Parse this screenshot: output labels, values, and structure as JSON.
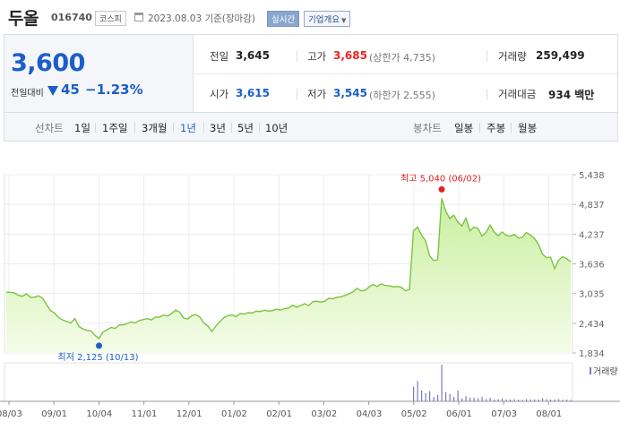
{
  "header": {
    "stock_name": "두올",
    "stock_code": "016740",
    "market": "코스피",
    "date": "2023.08.03 기준(장마감)",
    "realtime_label": "실시간",
    "overview_label": "기업개요"
  },
  "summary": {
    "price": "3,600",
    "prev_label": "전일대비",
    "change": "45",
    "change_pct": "−1.23%",
    "prev_close_label": "전일",
    "prev_close": "3,645",
    "high_label": "고가",
    "high": "3,685",
    "upper_limit": "(상한가 4,735)",
    "volume_label": "거래량",
    "volume": "259,499",
    "open_label": "시가",
    "open": "3,615",
    "low_label": "저가",
    "low": "3,545",
    "lower_limit": "(하한가 2,555)",
    "trade_value_label": "거래대금",
    "trade_value": "934 백만"
  },
  "periods": {
    "line_label": "선차트",
    "line_items": [
      "1일",
      "1주일",
      "3개월",
      "1년",
      "3년",
      "5년",
      "10년"
    ],
    "active": "1년",
    "candle_label": "봉차트",
    "candle_items": [
      "일봉",
      "주봉",
      "월봉"
    ]
  },
  "colors": {
    "up": "#e22222",
    "down": "#1b5ec9",
    "line": "#7dc242",
    "fill_top": "#c9ef9f",
    "fill_bottom": "#f4fce9",
    "volume": "#7a7abf"
  },
  "chart_data": {
    "type": "area",
    "y_ticks": [
      "5,438",
      "4,837",
      "4,237",
      "3,636",
      "3,035",
      "2,434",
      "1,834"
    ],
    "y_range": [
      1834,
      5438
    ],
    "x_ticks": [
      "08/03",
      "09/01",
      "10/04",
      "11/01",
      "12/01",
      "01/02",
      "02/01",
      "03/02",
      "04/03",
      "05/02",
      "06/01",
      "07/03",
      "08/01"
    ],
    "high_label": "최고 5,040 (06/02)",
    "low_label": "최저 2,125 (10/13)",
    "volume_label": "거래량",
    "series": [
      {
        "values": [
          3060,
          3060,
          3050,
          3000,
          2980,
          3030,
          2960,
          2960,
          2990,
          2940,
          2810,
          2690,
          2640,
          2550,
          2500,
          2470,
          2440,
          2530,
          2370,
          2320,
          2290,
          2280,
          2190,
          2125,
          2260,
          2300,
          2350,
          2330,
          2400,
          2400,
          2430,
          2460,
          2440,
          2490,
          2510,
          2530,
          2500,
          2560,
          2560,
          2600,
          2580,
          2630,
          2700,
          2660,
          2540,
          2520,
          2590,
          2610,
          2560,
          2440,
          2380,
          2270,
          2380,
          2470,
          2550,
          2590,
          2600,
          2570,
          2630,
          2620,
          2650,
          2640,
          2680,
          2670,
          2700,
          2680,
          2690,
          2720,
          2700,
          2730,
          2740,
          2800,
          2760,
          2790,
          2830,
          2790,
          2870,
          2880,
          2860,
          2880,
          2940,
          2930,
          2960,
          2970,
          3000,
          3030,
          3070,
          3140,
          3090,
          3100,
          3170,
          3220,
          3180,
          3230,
          3200,
          3190,
          3170,
          3180,
          3160,
          3090,
          3120,
          4300,
          4380,
          4220,
          4100,
          3800,
          3700,
          3720,
          4960,
          4700,
          4550,
          4620,
          4480,
          4400,
          4560,
          4300,
          4380,
          4350,
          4200,
          4270,
          4420,
          4280,
          4200,
          4280,
          4210,
          4200,
          4230,
          4160,
          4170,
          4270,
          4220,
          4150,
          4030,
          3830,
          3760,
          3770,
          3540,
          3710,
          3780,
          3740,
          3680
        ],
        "volumes": [
          1,
          1,
          1,
          1,
          1,
          1,
          1,
          1,
          1,
          1,
          1,
          1,
          1,
          1,
          1,
          1,
          1,
          1,
          1,
          1,
          1,
          1,
          1,
          1,
          1,
          1,
          1,
          1,
          1,
          1,
          1,
          1,
          1,
          1,
          1,
          1,
          1,
          1,
          1,
          1,
          1,
          1,
          1,
          1,
          1,
          1,
          1,
          1,
          1,
          1,
          1,
          1,
          1,
          1,
          1,
          1,
          1,
          1,
          1,
          1,
          1,
          1,
          1,
          1,
          1,
          1,
          1,
          1,
          1,
          1,
          1,
          1,
          1,
          1,
          1,
          1,
          1,
          1,
          1,
          1,
          1,
          1,
          1,
          1,
          1,
          1,
          1,
          1,
          1,
          1,
          1,
          1,
          1,
          1,
          1,
          1,
          1,
          1,
          1,
          1,
          1,
          40,
          55,
          30,
          22,
          28,
          12,
          18,
          100,
          25,
          20,
          12,
          30,
          8,
          14,
          10,
          10,
          8,
          12,
          6,
          10,
          5,
          6,
          8,
          5,
          5,
          6,
          5,
          4,
          6,
          5,
          5,
          5,
          8,
          6,
          5,
          5,
          6,
          4,
          5,
          4
        ]
      }
    ]
  }
}
